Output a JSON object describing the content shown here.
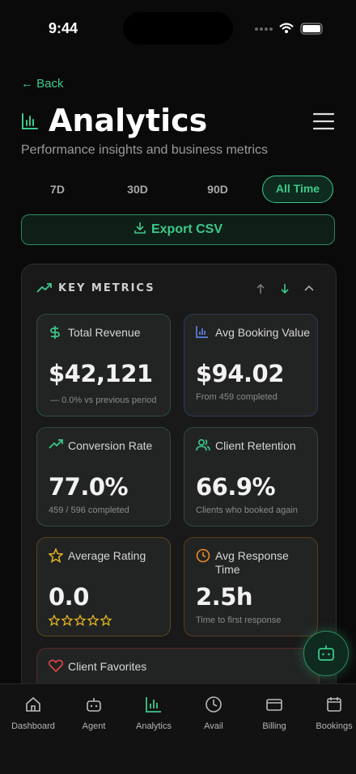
{
  "status_bar": {
    "time": "9:44"
  },
  "header": {
    "back": "Back",
    "title": "Analytics",
    "subtitle": "Performance insights and business metrics"
  },
  "ranges": {
    "items": [
      "7D",
      "30D",
      "90D",
      "All Time"
    ],
    "active": "All Time"
  },
  "export": "Export CSV",
  "section": {
    "title": "KEY METRICS"
  },
  "cards": [
    {
      "label": "Total Revenue",
      "value": "$42,121",
      "sub": "0.0% vs previous period"
    },
    {
      "label": "Avg Booking Value",
      "value": "$94.02",
      "sub": "From 459 completed"
    },
    {
      "label": "Conversion Rate",
      "value": "77.0%",
      "sub": "459 / 596 completed"
    },
    {
      "label": "Client Retention",
      "value": "66.9%",
      "sub": "Clients who booked again"
    },
    {
      "label": "Average Rating",
      "value": "0.0"
    },
    {
      "label": "Avg Response Time",
      "value": "2.5h",
      "sub": "Time to first response"
    },
    {
      "label": "Client Favorites"
    }
  ],
  "nav": {
    "items": [
      "Dashboard",
      "Agent",
      "Analytics",
      "Avail",
      "Billing",
      "Bookings"
    ],
    "active": "Analytics"
  }
}
